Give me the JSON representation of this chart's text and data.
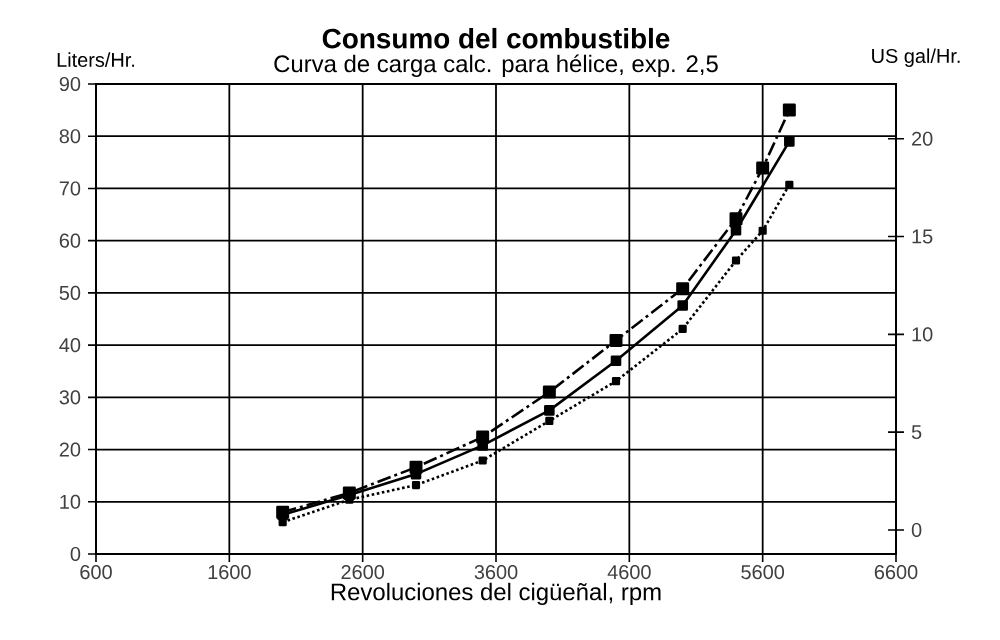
{
  "chart_data": {
    "type": "line",
    "title": "Consumo del combustible",
    "subtitle": "Curva de carga calc. para hélice, exp. 2,5",
    "xlabel": "Revoluciones del cigüeñal, rpm",
    "ylabel": "Liters/Hr.",
    "y2label": "US gal/Hr.",
    "xlim": [
      600,
      6600
    ],
    "xticks": [
      600,
      1600,
      2600,
      3600,
      4600,
      5600,
      6600
    ],
    "ylim": [
      0,
      90
    ],
    "yticks": [
      0,
      10,
      20,
      30,
      40,
      50,
      60,
      70,
      80,
      90
    ],
    "y2lim": [
      -1.23,
      22.8
    ],
    "y2ticks": [
      0,
      5,
      10,
      15,
      20
    ],
    "grid": true,
    "marker": "square",
    "series": [
      {
        "color": "#000000",
        "line_style": "dashed",
        "x": [
          2000,
          2500,
          3000,
          3500,
          4000,
          4500,
          5000,
          5400,
          5600,
          5800
        ],
        "values": [
          8,
          11.7,
          16.6,
          22.4,
          31,
          40.9,
          50.8,
          64.2,
          73.9,
          85
        ]
      },
      {
        "color": "#000000",
        "line_style": "solid",
        "x": [
          2000,
          2500,
          3000,
          3500,
          4000,
          4500,
          5000,
          5400,
          5800
        ],
        "values": [
          7.5,
          11.3,
          15.3,
          20.8,
          27.5,
          37,
          47.6,
          62,
          79
        ]
      },
      {
        "color": "#000000",
        "line_style": "dotted",
        "x": [
          2000,
          2500,
          3000,
          3500,
          4000,
          4500,
          5000,
          5400,
          5600,
          5800
        ],
        "values": [
          6.1,
          10.4,
          13.2,
          17.9,
          25.5,
          33.1,
          43.1,
          56.2,
          61.9,
          70.7
        ]
      }
    ]
  }
}
